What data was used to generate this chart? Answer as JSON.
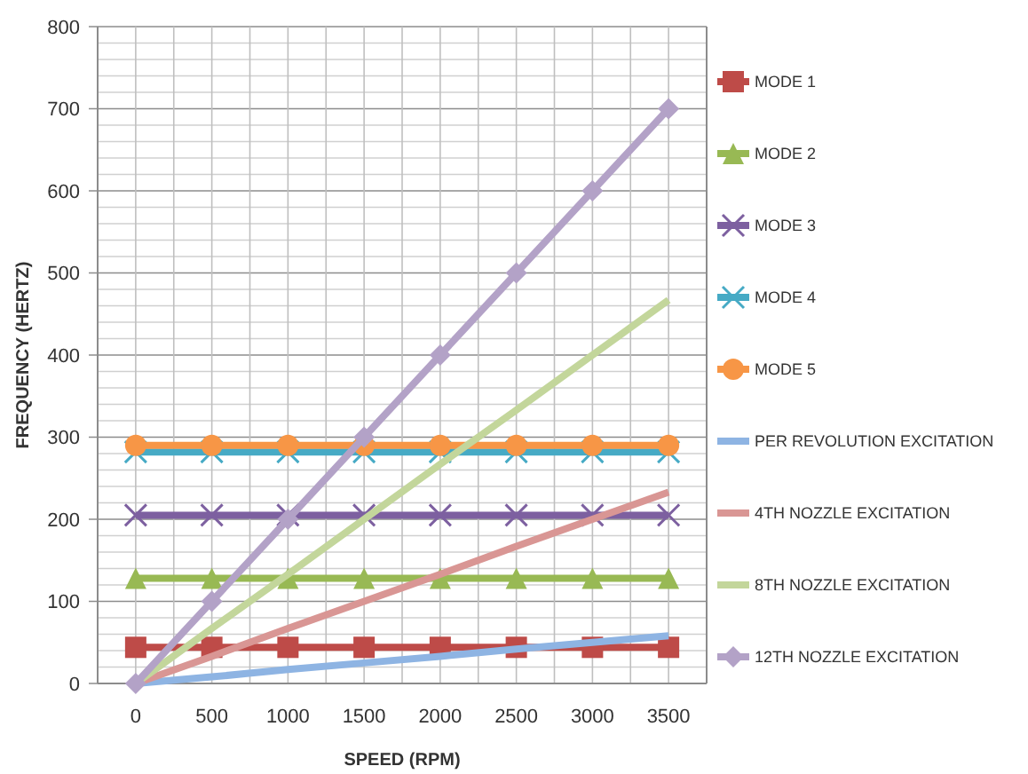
{
  "chart_data": {
    "type": "line",
    "xlabel": "SPEED (RPM)",
    "ylabel": "FREQUENCY (HERTZ)",
    "categories": [
      "0",
      "500",
      "1000",
      "1500",
      "2000",
      "2500",
      "3000",
      "3500"
    ],
    "ylim": [
      0,
      800
    ],
    "yticks": [
      0,
      100,
      200,
      300,
      400,
      500,
      600,
      700,
      800
    ],
    "grid": true,
    "legend": "right",
    "series": [
      {
        "name": "MODE 1",
        "color": "#be4b48",
        "marker": "square",
        "values": [
          44,
          44,
          44,
          44,
          44,
          44,
          44,
          44
        ]
      },
      {
        "name": "MODE 2",
        "color": "#98b954",
        "marker": "triangle",
        "values": [
          128,
          128,
          128,
          128,
          128,
          128,
          128,
          128
        ]
      },
      {
        "name": "MODE 3",
        "color": "#7d60a0",
        "marker": "cross",
        "values": [
          205,
          205,
          205,
          205,
          205,
          205,
          205,
          205
        ]
      },
      {
        "name": "MODE 4",
        "color": "#46aac5",
        "marker": "cross",
        "values": [
          282,
          282,
          282,
          282,
          282,
          282,
          282,
          282
        ]
      },
      {
        "name": "MODE 5",
        "color": "#f79646",
        "marker": "circle",
        "values": [
          290,
          290,
          290,
          290,
          290,
          290,
          290,
          290
        ]
      },
      {
        "name": "PER REVOLUTION EXCITATION",
        "color": "#8eb4e3",
        "marker": "none",
        "values": [
          0,
          8,
          17,
          25,
          33,
          42,
          50,
          58
        ]
      },
      {
        "name": "4TH NOZZLE EXCITATION",
        "color": "#d99694",
        "marker": "none",
        "values": [
          0,
          33,
          67,
          100,
          133,
          167,
          200,
          233
        ]
      },
      {
        "name": "8TH NOZZLE EXCITATION",
        "color": "#c3d69b",
        "marker": "none",
        "values": [
          0,
          67,
          133,
          200,
          267,
          333,
          400,
          467
        ]
      },
      {
        "name": "12TH NOZZLE EXCITATION",
        "color": "#b3a2c7",
        "marker": "diamond",
        "values": [
          0,
          100,
          200,
          300,
          400,
          500,
          600,
          700
        ]
      }
    ]
  }
}
